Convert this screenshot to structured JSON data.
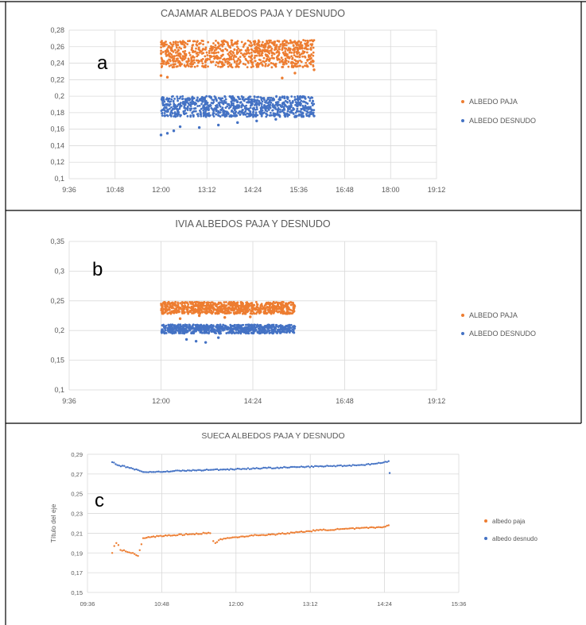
{
  "chart_data": [
    {
      "type": "scatter",
      "panel_label": "a",
      "title": "CAJAMAR ALBEDOS PAJA Y DESNUDO",
      "xlabel": "",
      "ylabel": "",
      "x_ticks": [
        "9:36",
        "10:48",
        "12:00",
        "13:12",
        "14:24",
        "15:36",
        "16:48",
        "18:00",
        "19:12"
      ],
      "y_ticks": [
        "0,1",
        "0,12",
        "0,14",
        "0,16",
        "0,18",
        "0,2",
        "0,22",
        "0,24",
        "0,26",
        "0,28"
      ],
      "xlim": [
        "9:36",
        "19:12"
      ],
      "ylim": [
        0.1,
        0.28
      ],
      "grid": true,
      "legend_position": "right",
      "series": [
        {
          "name": "ALBEDO PAJA",
          "color": "#ED7D31",
          "x_range": [
            "12:00",
            "16:00"
          ],
          "band": [
            0.235,
            0.268
          ],
          "sample": [
            [
              "12:00",
              0.225
            ],
            [
              "12:10",
              0.223
            ],
            [
              "12:30",
              0.24
            ],
            [
              "13:30",
              0.24
            ],
            [
              "14:30",
              0.238
            ],
            [
              "15:10",
              0.222
            ],
            [
              "15:30",
              0.228
            ],
            [
              "16:00",
              0.232
            ]
          ]
        },
        {
          "name": "ALBEDO DESNUDO",
          "color": "#4472C4",
          "x_range": [
            "12:00",
            "16:00"
          ],
          "band": [
            0.175,
            0.2
          ],
          "sample": [
            [
              "12:00",
              0.153
            ],
            [
              "12:10",
              0.155
            ],
            [
              "12:20",
              0.158
            ],
            [
              "12:30",
              0.163
            ],
            [
              "13:00",
              0.162
            ],
            [
              "13:30",
              0.165
            ],
            [
              "14:00",
              0.168
            ],
            [
              "14:30",
              0.17
            ],
            [
              "15:00",
              0.172
            ],
            [
              "15:30",
              0.175
            ],
            [
              "16:00",
              0.176
            ]
          ]
        }
      ]
    },
    {
      "type": "scatter",
      "panel_label": "b",
      "title": "IVIA ALBEDOS PAJA Y DESNUDO",
      "xlabel": "",
      "ylabel": "",
      "x_ticks": [
        "9:36",
        "12:00",
        "14:24",
        "16:48",
        "19:12"
      ],
      "y_ticks": [
        "0,1",
        "0,15",
        "0,2",
        "0,25",
        "0,3",
        "0,35"
      ],
      "xlim": [
        "9:36",
        "19:12"
      ],
      "ylim": [
        0.1,
        0.35
      ],
      "grid": true,
      "legend_position": "right",
      "series": [
        {
          "name": "ALBEDO PAJA",
          "color": "#ED7D31",
          "x_range": [
            "12:00",
            "15:30"
          ],
          "band": [
            0.228,
            0.248
          ],
          "sample": [
            [
              "12:30",
              0.22
            ],
            [
              "13:00",
              0.225
            ],
            [
              "13:40",
              0.222
            ],
            [
              "14:20",
              0.223
            ]
          ]
        },
        {
          "name": "ALBEDO DESNUDO",
          "color": "#4472C4",
          "x_range": [
            "12:00",
            "15:30"
          ],
          "band": [
            0.195,
            0.21
          ],
          "sample": [
            [
              "12:40",
              0.185
            ],
            [
              "12:55",
              0.182
            ],
            [
              "13:10",
              0.18
            ],
            [
              "13:30",
              0.188
            ]
          ]
        }
      ]
    },
    {
      "type": "scatter",
      "panel_label": "c",
      "title": "SUECA ALBEDOS PAJA Y DESNUDO",
      "xlabel": "",
      "ylabel": "Título del eje",
      "x_ticks": [
        "09:36",
        "10:48",
        "12:00",
        "13:12",
        "14:24",
        "15:36"
      ],
      "y_ticks": [
        "0,15",
        "0,17",
        "0,19",
        "0,21",
        "0,23",
        "0,25",
        "0,27",
        "0,29"
      ],
      "xlim": [
        "09:36",
        "15:36"
      ],
      "ylim": [
        0.15,
        0.29
      ],
      "grid": true,
      "legend_position": "right",
      "series": [
        {
          "name": "albedo paja",
          "color": "#ED7D31",
          "points": [
            [
              "10:00",
              0.19
            ],
            [
              "10:02",
              0.197
            ],
            [
              "10:04",
              0.2
            ],
            [
              "10:06",
              0.198
            ],
            [
              "10:08",
              0.193
            ],
            [
              "10:20",
              0.19
            ],
            [
              "10:25",
              0.187
            ],
            [
              "10:30",
              0.205
            ],
            [
              "10:45",
              0.207
            ],
            [
              "11:00",
              0.208
            ],
            [
              "11:15",
              0.209
            ],
            [
              "11:30",
              0.21
            ],
            [
              "11:35",
              0.21
            ],
            [
              "11:38",
              0.202
            ],
            [
              "11:40",
              0.2
            ],
            [
              "11:45",
              0.204
            ],
            [
              "12:00",
              0.206
            ],
            [
              "12:20",
              0.208
            ],
            [
              "12:40",
              0.209
            ],
            [
              "13:00",
              0.211
            ],
            [
              "13:20",
              0.213
            ],
            [
              "13:40",
              0.214
            ],
            [
              "14:00",
              0.215
            ],
            [
              "14:20",
              0.216
            ],
            [
              "14:28",
              0.218
            ]
          ]
        },
        {
          "name": "albedo desnudo",
          "color": "#4472C4",
          "points": [
            [
              "10:00",
              0.282
            ],
            [
              "10:05",
              0.279
            ],
            [
              "10:15",
              0.277
            ],
            [
              "10:25",
              0.274
            ],
            [
              "10:30",
              0.272
            ],
            [
              "10:40",
              0.272
            ],
            [
              "11:00",
              0.273
            ],
            [
              "11:30",
              0.274
            ],
            [
              "12:00",
              0.275
            ],
            [
              "12:30",
              0.276
            ],
            [
              "13:00",
              0.277
            ],
            [
              "13:30",
              0.278
            ],
            [
              "14:00",
              0.279
            ],
            [
              "14:20",
              0.281
            ],
            [
              "14:28",
              0.283
            ],
            [
              "14:29",
              0.271
            ]
          ]
        }
      ]
    }
  ]
}
